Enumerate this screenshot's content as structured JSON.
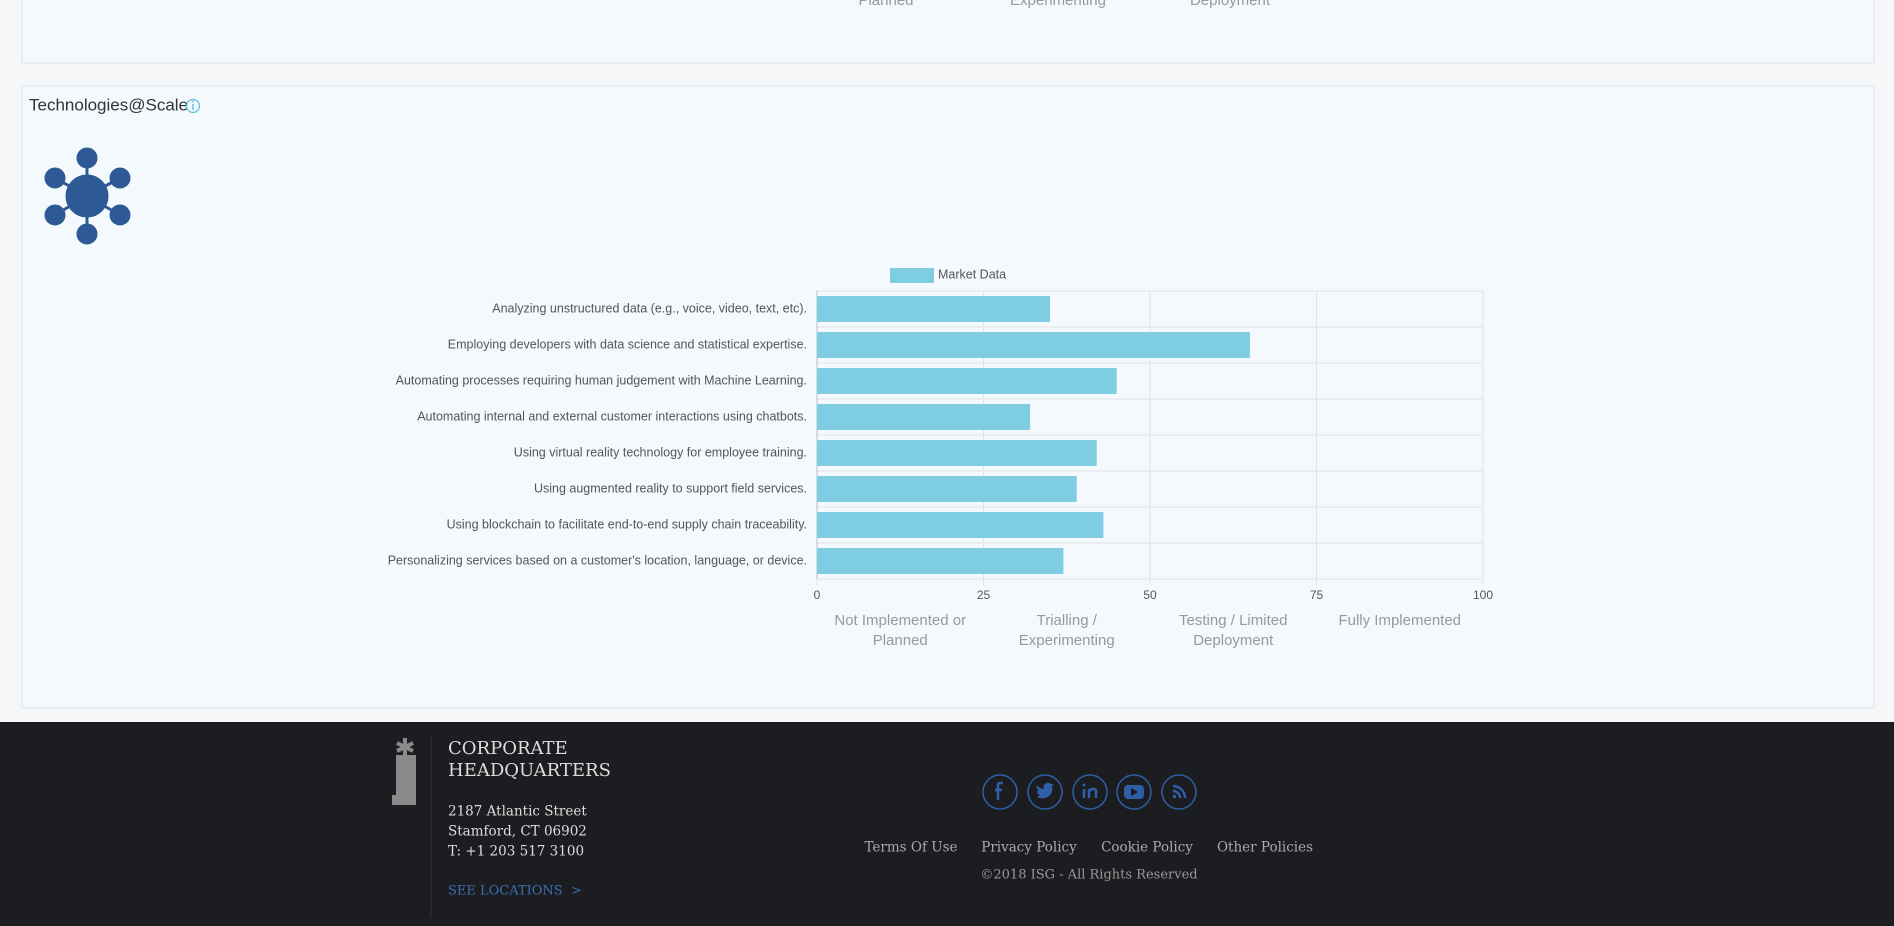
{
  "top_panel": {
    "scale_labels": [
      "Planned",
      "Experimenting",
      "Deployment"
    ]
  },
  "panel": {
    "title": "Technologies@Scale"
  },
  "chart_data": {
    "type": "bar",
    "orientation": "horizontal",
    "categories": [
      "Analyzing unstructured data (e.g., voice, video, text, etc).",
      "Employing developers with data science and statistical expertise.",
      "Automating processes requiring human judgement with Machine Learning.",
      "Automating internal and external customer interactions using chatbots.",
      "Using virtual reality technology for employee training.",
      "Using augmented reality to support field services.",
      "Using blockchain to facilitate end-to-end supply chain traceability.",
      "Personalizing services based on a customer's location, language, or device."
    ],
    "series": [
      {
        "name": "Market Data",
        "color": "#7ecde3",
        "values": [
          35,
          65,
          45,
          32,
          42,
          39,
          43,
          37
        ]
      }
    ],
    "xlim": [
      0,
      100
    ],
    "xticks": [
      0,
      25,
      50,
      75,
      100
    ],
    "grid": true,
    "legend": "top",
    "scale_labels": [
      [
        "Not Implemented or",
        "Planned"
      ],
      [
        "Trialling /",
        "Experimenting"
      ],
      [
        "Testing / Limited",
        "Deployment"
      ],
      [
        "Fully Implemented"
      ]
    ]
  },
  "footer": {
    "heading": [
      "CORPORATE",
      "HEADQUARTERS"
    ],
    "address": [
      "2187 Atlantic Street",
      "Stamford, CT 06902",
      "T: +1 203 517 3100"
    ],
    "locations_link": "SEE LOCATIONS  >",
    "links": [
      "Terms Of Use",
      "Privacy Policy",
      "Cookie Policy",
      "Other Policies"
    ],
    "copyright": "©2018 ISG - All Rights Reserved"
  }
}
